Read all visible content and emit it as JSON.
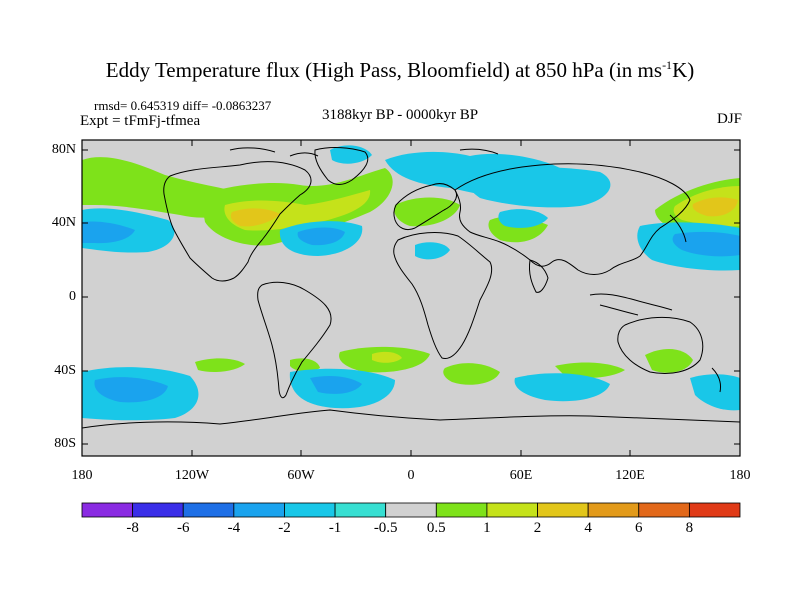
{
  "title": {
    "main": "Eddy Temperature flux (High Pass, Bloomfield) at 850 hPa (in ms",
    "sup": "-1",
    "tail": "K)"
  },
  "stats": "rmsd= 0.645319 diff= -0.0863237",
  "experiment": "Expt = tFmFj-tfmea",
  "period": "3188kyr BP - 0000kyr BP",
  "season": "DJF",
  "axes": {
    "y_ticks": [
      "80N",
      "40N",
      "0",
      "40S",
      "80S"
    ],
    "x_ticks": [
      "180",
      "120W",
      "60W",
      "0",
      "60E",
      "120E",
      "180"
    ]
  },
  "colorbar": {
    "labels": [
      "-8",
      "-6",
      "-4",
      "-2",
      "-1",
      "-0.5",
      "0.5",
      "1",
      "2",
      "4",
      "6",
      "8"
    ],
    "colors": [
      "#8a2be2",
      "#3a2ee8",
      "#1e6fe6",
      "#1aa3ee",
      "#19c7e8",
      "#37dfd2",
      "#d1d1d1",
      "#7ee21a",
      "#c5e21a",
      "#e2c61a",
      "#e29a1a",
      "#e2681a",
      "#e03a17"
    ]
  },
  "map": {
    "background": "#d1d1d1",
    "anomalies": [
      {
        "value": "2",
        "color": "#c5e21a"
      },
      {
        "value": "4",
        "color": "#e2c61a"
      },
      {
        "value": "1",
        "color": "#7ee21a"
      },
      {
        "value": "-1",
        "color": "#19c7e8"
      },
      {
        "value": "-2",
        "color": "#1aa3ee"
      }
    ]
  }
}
